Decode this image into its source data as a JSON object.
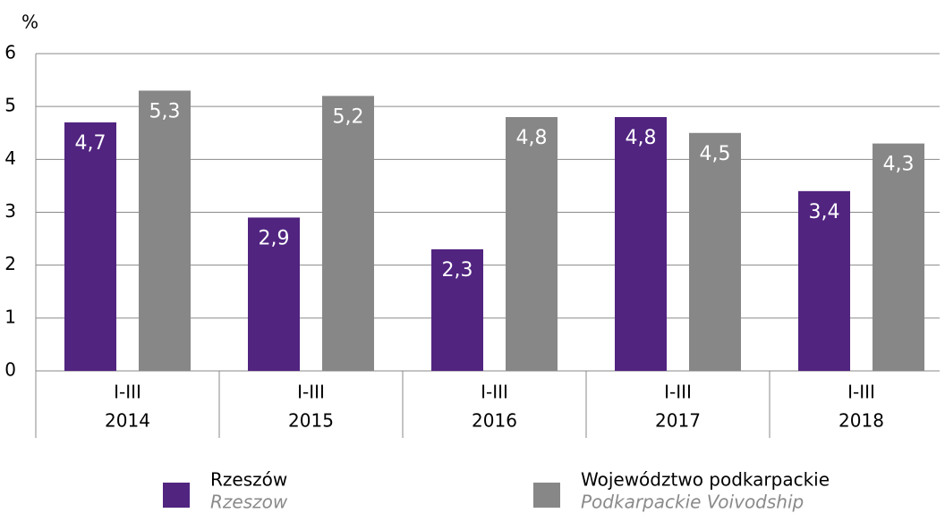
{
  "chart_data": {
    "type": "bar",
    "y_label": "%",
    "categories": [
      [
        "I-III",
        "2014"
      ],
      [
        "I-III",
        "2015"
      ],
      [
        "I-III",
        "2016"
      ],
      [
        "I-III",
        "2017"
      ],
      [
        "I-III",
        "2018"
      ]
    ],
    "series": [
      {
        "name": "Rzeszów",
        "name_en": "Rzeszow",
        "color": "#512480",
        "values": [
          4.7,
          2.9,
          2.3,
          4.8,
          3.4
        ],
        "value_labels": [
          "4,7",
          "2,9",
          "2,3",
          "4,8",
          "3,4"
        ]
      },
      {
        "name": "Województwo podkarpackie",
        "name_en": "Podkarpackie Voivodship",
        "color": "#878787",
        "values": [
          5.3,
          5.2,
          4.8,
          4.5,
          4.3
        ],
        "value_labels": [
          "5,3",
          "5,2",
          "4,8",
          "4,5",
          "4,3"
        ]
      }
    ],
    "ylim": [
      0,
      6
    ],
    "yticks": [
      0,
      1,
      2,
      3,
      4,
      5,
      6
    ],
    "grid": true,
    "legend": "bottom"
  }
}
